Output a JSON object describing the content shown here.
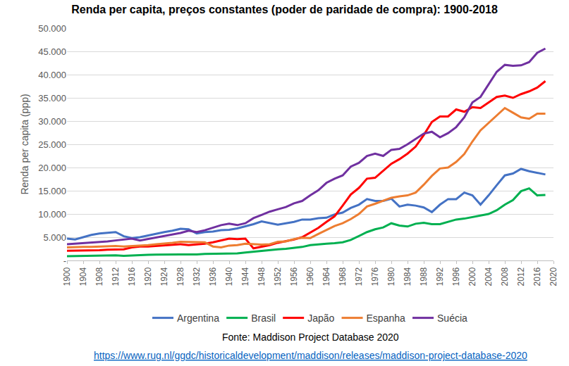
{
  "chart_data": {
    "type": "line",
    "title": "Renda per capita, preços constantes (poder de paridade de compra): 1900-2018",
    "y_label": "Renda per capita (ppp)",
    "annotations": [
      "Fonte: Maddison Project Database 2020",
      "https://www.rug.nl/ggdc/historicaldevelopment/maddison/releases/maddison-project-database-2020"
    ],
    "x": [
      1900,
      1902,
      1904,
      1906,
      1908,
      1910,
      1912,
      1914,
      1916,
      1918,
      1920,
      1922,
      1924,
      1926,
      1928,
      1930,
      1932,
      1934,
      1936,
      1938,
      1940,
      1942,
      1944,
      1946,
      1948,
      1950,
      1952,
      1954,
      1956,
      1958,
      1960,
      1962,
      1964,
      1966,
      1968,
      1970,
      1972,
      1974,
      1976,
      1978,
      1980,
      1982,
      1984,
      1986,
      1988,
      1990,
      1992,
      1994,
      1996,
      1998,
      2000,
      2002,
      2004,
      2006,
      2008,
      2010,
      2012,
      2014,
      2016,
      2018
    ],
    "series": [
      {
        "name": "Argentina",
        "color": "#4472C4",
        "values": [
          4700,
          4500,
          5000,
          5500,
          5800,
          6000,
          6100,
          5200,
          4800,
          5000,
          5400,
          5700,
          6100,
          6400,
          6800,
          6700,
          5800,
          6100,
          6200,
          6500,
          6600,
          6900,
          7300,
          7800,
          8400,
          8000,
          7700,
          8000,
          8300,
          8800,
          8800,
          9100,
          9200,
          9900,
          10300,
          11300,
          12000,
          13200,
          12800,
          12800,
          13300,
          11600,
          12000,
          11800,
          11400,
          10400,
          12000,
          13200,
          13200,
          14600,
          14000,
          12000,
          14000,
          16200,
          18300,
          18700,
          19700,
          19200,
          18800,
          18500
        ]
      },
      {
        "name": "Brasil",
        "color": "#00B050",
        "values": [
          900,
          950,
          1000,
          1000,
          1050,
          1100,
          1100,
          1000,
          1100,
          1100,
          1200,
          1250,
          1250,
          1300,
          1350,
          1300,
          1300,
          1400,
          1450,
          1500,
          1500,
          1500,
          1700,
          1900,
          2000,
          2200,
          2400,
          2500,
          2700,
          2900,
          3300,
          3500,
          3600,
          3700,
          3900,
          4400,
          5300,
          6100,
          6700,
          7100,
          8000,
          7500,
          7300,
          7900,
          8100,
          7800,
          7800,
          8300,
          8800,
          9000,
          9300,
          9600,
          10000,
          10800,
          12000,
          13000,
          14900,
          15500,
          14000,
          14100
        ]
      },
      {
        "name": "Japão",
        "color": "#FF0000",
        "values": [
          2100,
          2100,
          2100,
          2200,
          2200,
          2300,
          2400,
          2400,
          2800,
          3000,
          3000,
          3100,
          3200,
          3300,
          3500,
          3300,
          3400,
          3600,
          3900,
          4300,
          4700,
          4600,
          4700,
          2600,
          2900,
          3300,
          3800,
          4100,
          4500,
          5000,
          6000,
          7000,
          8300,
          9500,
          11800,
          14200,
          15600,
          17600,
          17800,
          19300,
          20800,
          21800,
          23000,
          24500,
          27000,
          29800,
          31000,
          31000,
          32500,
          32000,
          33000,
          32800,
          34000,
          35200,
          35500,
          35000,
          35800,
          36400,
          37200,
          38600
        ]
      },
      {
        "name": "Espanha",
        "color": "#ED7D31",
        "values": [
          2800,
          2900,
          2900,
          2900,
          3000,
          3000,
          3100,
          3000,
          3100,
          3100,
          3300,
          3500,
          3600,
          3800,
          4000,
          4000,
          3900,
          3900,
          3000,
          2800,
          3200,
          3300,
          3600,
          3500,
          3400,
          3500,
          4000,
          4100,
          4600,
          4900,
          4800,
          5700,
          6500,
          7400,
          8000,
          8900,
          10000,
          11600,
          12200,
          12800,
          13500,
          13800,
          14000,
          14600,
          16300,
          18200,
          19800,
          20000,
          21200,
          22900,
          25600,
          28000,
          29600,
          31200,
          32800,
          31800,
          30800,
          30500,
          31600,
          31600
        ]
      },
      {
        "name": "Suécia",
        "color": "#7030A0",
        "values": [
          3500,
          3600,
          3700,
          3900,
          4000,
          4100,
          4300,
          4500,
          4700,
          4300,
          4600,
          4900,
          5300,
          5600,
          5900,
          6400,
          6100,
          6500,
          7100,
          7600,
          7900,
          7600,
          8000,
          9100,
          9800,
          10500,
          11000,
          11500,
          12300,
          12800,
          14000,
          15100,
          16700,
          17600,
          18300,
          20200,
          21000,
          22500,
          23000,
          22500,
          23800,
          24000,
          25000,
          26200,
          27300,
          27700,
          26500,
          27400,
          28700,
          30800,
          34000,
          35200,
          37800,
          40600,
          42100,
          41900,
          42000,
          42700,
          44700,
          45600
        ]
      }
    ],
    "xlim": [
      1900,
      2020
    ],
    "xticks": [
      1900,
      1904,
      1908,
      1912,
      1916,
      1920,
      1924,
      1928,
      1932,
      1936,
      1940,
      1944,
      1948,
      1952,
      1956,
      1960,
      1964,
      1968,
      1972,
      1976,
      1980,
      1984,
      1988,
      1992,
      1996,
      2000,
      2004,
      2008,
      2012,
      2016,
      2020
    ],
    "ylim": [
      0,
      50000
    ],
    "yticks": [
      {
        "value": 0,
        "label": "-"
      },
      {
        "value": 5000,
        "label": "5.000"
      },
      {
        "value": 10000,
        "label": "10.000"
      },
      {
        "value": 15000,
        "label": "15.000"
      },
      {
        "value": 20000,
        "label": "20.000"
      },
      {
        "value": 25000,
        "label": "25.000"
      },
      {
        "value": 30000,
        "label": "30.000"
      },
      {
        "value": 35000,
        "label": "35.000"
      },
      {
        "value": 40000,
        "label": "40.000"
      },
      {
        "value": 45000,
        "label": "45.000"
      },
      {
        "value": 50000,
        "label": "50.000"
      }
    ],
    "grid": true,
    "legend": "bottom"
  }
}
